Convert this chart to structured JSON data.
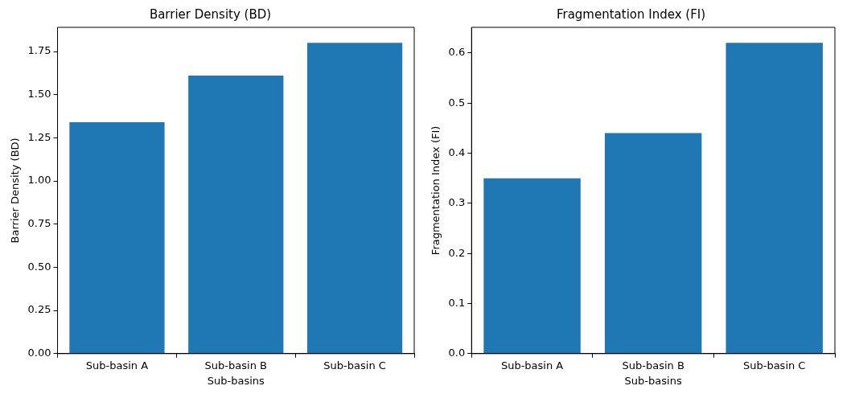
{
  "chart_data": [
    {
      "type": "bar",
      "title": "Barrier Density (BD)",
      "xlabel": "Sub-basins",
      "ylabel": "Barrier Density (BD)",
      "categories": [
        "Sub-basin A",
        "Sub-basin B",
        "Sub-basin C"
      ],
      "values": [
        1.34,
        1.61,
        1.8
      ],
      "color": "#1f77b4",
      "ylim": [
        0,
        1.89
      ],
      "yticks": [
        {
          "value": 0,
          "label": "0.00"
        },
        {
          "value": 0.25,
          "label": "0.25"
        },
        {
          "value": 0.5,
          "label": "0.50"
        },
        {
          "value": 0.75,
          "label": "0.75"
        },
        {
          "value": 1,
          "label": "1.00"
        },
        {
          "value": 1.25,
          "label": "1.25"
        },
        {
          "value": 1.5,
          "label": "1.50"
        },
        {
          "value": 1.75,
          "label": "1.75"
        }
      ],
      "grid": false,
      "legend": false
    },
    {
      "type": "bar",
      "title": "Fragmentation Index (FI)",
      "xlabel": "Sub-basins",
      "ylabel": "Fragmentation Index (FI)",
      "categories": [
        "Sub-basin A",
        "Sub-basin B",
        "Sub-basin C"
      ],
      "values": [
        0.35,
        0.44,
        0.62
      ],
      "color": "#1f77b4",
      "ylim": [
        0,
        0.651
      ],
      "yticks": [
        {
          "value": 0,
          "label": "0.0"
        },
        {
          "value": 0.1,
          "label": "0.1"
        },
        {
          "value": 0.2,
          "label": "0.2"
        },
        {
          "value": 0.3,
          "label": "0.3"
        },
        {
          "value": 0.4,
          "label": "0.4"
        },
        {
          "value": 0.5,
          "label": "0.5"
        },
        {
          "value": 0.6,
          "label": "0.6"
        }
      ],
      "grid": false,
      "legend": false
    }
  ]
}
